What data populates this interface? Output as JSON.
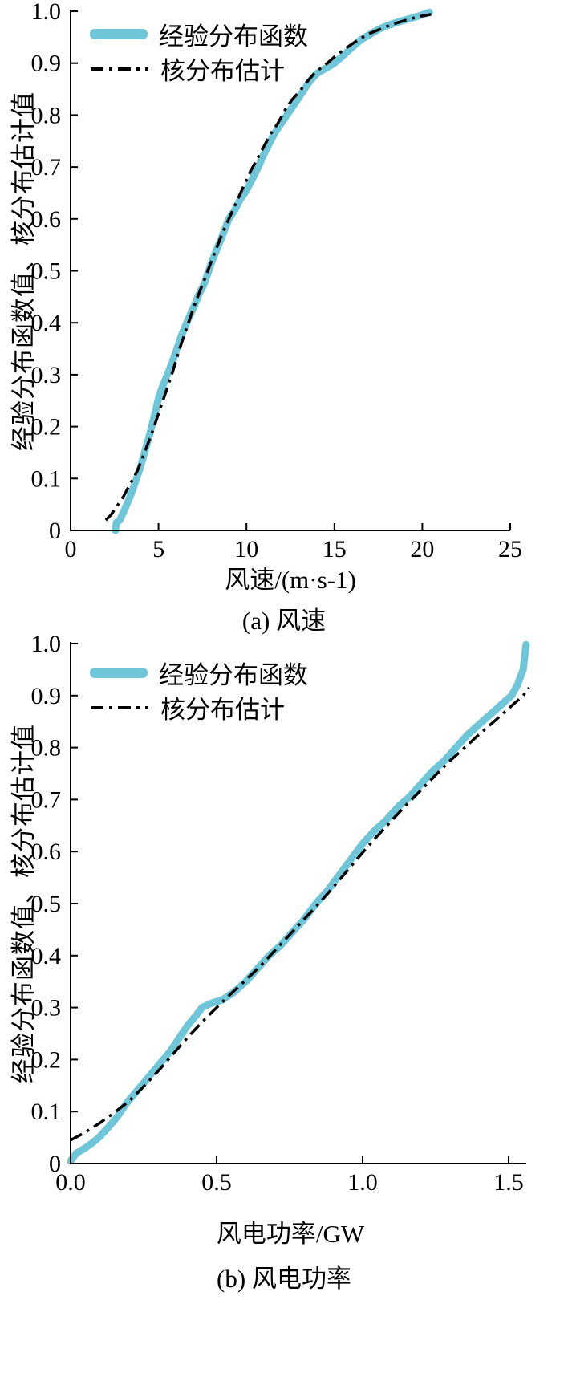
{
  "colors": {
    "empirical": "#6fc6d8",
    "kernel": "#000000",
    "axis": "#000000",
    "background": "#ffffff"
  },
  "chart_data": [
    {
      "id": "wind-speed-cdf",
      "type": "line",
      "caption": "(a) 风速",
      "xlabel": "风速/(m·s-1)",
      "ylabel": "经验分布函数值、核分布估计值",
      "xlim": [
        0,
        25
      ],
      "ylim": [
        0,
        1
      ],
      "grid": false,
      "legend_position": "top-left",
      "xticks": {
        "values": [
          0,
          5,
          10,
          15,
          20,
          25
        ],
        "labels": [
          "0",
          "5",
          "10",
          "15",
          "20",
          "25"
        ]
      },
      "yticks": {
        "values": [
          0,
          0.1,
          0.2,
          0.3,
          0.4,
          0.5,
          0.6,
          0.7,
          0.8,
          0.9,
          1.0
        ],
        "labels": [
          "0",
          "0.1",
          "0.2",
          "0.3",
          "0.4",
          "0.5",
          "0.6",
          "0.7",
          "0.8",
          "0.9",
          "1.0"
        ]
      },
      "series": [
        {
          "name": "经验分布函数",
          "style": "thick-solid",
          "color": "#6fc6d8",
          "points": [
            [
              2.55,
              0.0
            ],
            [
              2.6,
              0.015
            ],
            [
              2.8,
              0.02
            ],
            [
              3.0,
              0.035
            ],
            [
              3.2,
              0.05
            ],
            [
              3.5,
              0.075
            ],
            [
              3.8,
              0.105
            ],
            [
              4.0,
              0.125
            ],
            [
              4.2,
              0.15
            ],
            [
              4.5,
              0.185
            ],
            [
              4.8,
              0.225
            ],
            [
              5.0,
              0.255
            ],
            [
              5.2,
              0.275
            ],
            [
              5.5,
              0.3
            ],
            [
              5.8,
              0.325
            ],
            [
              6.0,
              0.345
            ],
            [
              6.3,
              0.375
            ],
            [
              6.6,
              0.4
            ],
            [
              7.0,
              0.43
            ],
            [
              7.3,
              0.455
            ],
            [
              7.6,
              0.475
            ],
            [
              8.0,
              0.515
            ],
            [
              8.3,
              0.54
            ],
            [
              8.6,
              0.565
            ],
            [
              9.0,
              0.6
            ],
            [
              9.3,
              0.615
            ],
            [
              9.6,
              0.635
            ],
            [
              10.0,
              0.655
            ],
            [
              10.3,
              0.675
            ],
            [
              10.6,
              0.695
            ],
            [
              11.0,
              0.725
            ],
            [
              11.3,
              0.745
            ],
            [
              11.6,
              0.765
            ],
            [
              12.0,
              0.785
            ],
            [
              12.3,
              0.8
            ],
            [
              12.6,
              0.815
            ],
            [
              13.0,
              0.835
            ],
            [
              13.3,
              0.85
            ],
            [
              13.6,
              0.865
            ],
            [
              14.0,
              0.88
            ],
            [
              14.5,
              0.89
            ],
            [
              15.0,
              0.9
            ],
            [
              15.5,
              0.915
            ],
            [
              16.0,
              0.93
            ],
            [
              16.5,
              0.945
            ],
            [
              17.0,
              0.955
            ],
            [
              17.5,
              0.965
            ],
            [
              18.0,
              0.972
            ],
            [
              18.5,
              0.978
            ],
            [
              19.0,
              0.983
            ],
            [
              19.5,
              0.988
            ],
            [
              20.0,
              0.993
            ],
            [
              20.4,
              0.998
            ]
          ]
        },
        {
          "name": "核分布估计",
          "style": "dash-dot",
          "color": "#000000",
          "points": [
            [
              2.0,
              0.02
            ],
            [
              2.3,
              0.03
            ],
            [
              2.6,
              0.045
            ],
            [
              3.0,
              0.065
            ],
            [
              3.4,
              0.09
            ],
            [
              3.8,
              0.115
            ],
            [
              4.2,
              0.15
            ],
            [
              4.6,
              0.185
            ],
            [
              5.0,
              0.225
            ],
            [
              5.4,
              0.265
            ],
            [
              5.8,
              0.305
            ],
            [
              6.2,
              0.35
            ],
            [
              6.6,
              0.39
            ],
            [
              7.0,
              0.43
            ],
            [
              7.4,
              0.465
            ],
            [
              7.8,
              0.5
            ],
            [
              8.2,
              0.535
            ],
            [
              8.6,
              0.57
            ],
            [
              9.0,
              0.6
            ],
            [
              9.4,
              0.63
            ],
            [
              9.8,
              0.66
            ],
            [
              10.2,
              0.69
            ],
            [
              10.6,
              0.715
            ],
            [
              11.0,
              0.74
            ],
            [
              11.4,
              0.765
            ],
            [
              11.8,
              0.785
            ],
            [
              12.2,
              0.81
            ],
            [
              12.6,
              0.83
            ],
            [
              13.0,
              0.845
            ],
            [
              13.4,
              0.862
            ],
            [
              13.8,
              0.878
            ],
            [
              14.2,
              0.89
            ],
            [
              14.6,
              0.9
            ],
            [
              15.0,
              0.912
            ],
            [
              15.5,
              0.925
            ],
            [
              16.0,
              0.937
            ],
            [
              16.5,
              0.948
            ],
            [
              17.0,
              0.957
            ],
            [
              17.5,
              0.964
            ],
            [
              18.0,
              0.971
            ],
            [
              18.5,
              0.977
            ],
            [
              19.0,
              0.982
            ],
            [
              19.5,
              0.987
            ],
            [
              20.0,
              0.991
            ],
            [
              20.5,
              0.994
            ]
          ]
        }
      ]
    },
    {
      "id": "wind-power-cdf",
      "type": "line",
      "caption": "(b) 风电功率",
      "xlabel": "风电功率/GW",
      "ylabel": "经验分布函数值、核分布估计值",
      "xlim": [
        0,
        1.5
      ],
      "ylim": [
        0,
        1
      ],
      "grid": false,
      "legend_position": "top-left",
      "xticks": {
        "values": [
          0,
          0.5,
          1.0,
          1.5
        ],
        "labels": [
          "0.0",
          "0.5",
          "1.0",
          "1.5"
        ]
      },
      "yticks": {
        "values": [
          0,
          0.1,
          0.2,
          0.3,
          0.4,
          0.5,
          0.6,
          0.7,
          0.8,
          0.9,
          1.0
        ],
        "labels": [
          "0",
          "0.1",
          "0.2",
          "0.3",
          "0.4",
          "0.5",
          "0.6",
          "0.7",
          "0.8",
          "0.9",
          "1.0"
        ]
      },
      "series": [
        {
          "name": "经验分布函数",
          "style": "thick-solid",
          "color": "#6fc6d8",
          "points": [
            [
              0.0,
              0.005
            ],
            [
              0.02,
              0.02
            ],
            [
              0.05,
              0.03
            ],
            [
              0.08,
              0.042
            ],
            [
              0.1,
              0.052
            ],
            [
              0.13,
              0.07
            ],
            [
              0.16,
              0.09
            ],
            [
              0.19,
              0.115
            ],
            [
              0.22,
              0.135
            ],
            [
              0.25,
              0.155
            ],
            [
              0.28,
              0.175
            ],
            [
              0.31,
              0.195
            ],
            [
              0.34,
              0.215
            ],
            [
              0.37,
              0.24
            ],
            [
              0.4,
              0.265
            ],
            [
              0.43,
              0.285
            ],
            [
              0.45,
              0.3
            ],
            [
              0.48,
              0.308
            ],
            [
              0.52,
              0.315
            ],
            [
              0.56,
              0.33
            ],
            [
              0.6,
              0.35
            ],
            [
              0.64,
              0.375
            ],
            [
              0.68,
              0.4
            ],
            [
              0.72,
              0.42
            ],
            [
              0.76,
              0.445
            ],
            [
              0.8,
              0.47
            ],
            [
              0.84,
              0.5
            ],
            [
              0.88,
              0.525
            ],
            [
              0.92,
              0.555
            ],
            [
              0.96,
              0.585
            ],
            [
              1.0,
              0.615
            ],
            [
              1.04,
              0.64
            ],
            [
              1.08,
              0.66
            ],
            [
              1.12,
              0.685
            ],
            [
              1.16,
              0.705
            ],
            [
              1.2,
              0.73
            ],
            [
              1.24,
              0.755
            ],
            [
              1.28,
              0.775
            ],
            [
              1.32,
              0.8
            ],
            [
              1.36,
              0.825
            ],
            [
              1.4,
              0.845
            ],
            [
              1.44,
              0.865
            ],
            [
              1.48,
              0.885
            ],
            [
              1.51,
              0.9
            ],
            [
              1.53,
              0.92
            ],
            [
              1.55,
              0.95
            ],
            [
              1.555,
              0.975
            ],
            [
              1.56,
              0.998
            ]
          ]
        },
        {
          "name": "核分布估计",
          "style": "dash-dot",
          "color": "#000000",
          "points": [
            [
              0.0,
              0.045
            ],
            [
              0.05,
              0.06
            ],
            [
              0.1,
              0.078
            ],
            [
              0.15,
              0.098
            ],
            [
              0.2,
              0.12
            ],
            [
              0.25,
              0.148
            ],
            [
              0.3,
              0.178
            ],
            [
              0.35,
              0.21
            ],
            [
              0.4,
              0.242
            ],
            [
              0.45,
              0.272
            ],
            [
              0.5,
              0.3
            ],
            [
              0.55,
              0.327
            ],
            [
              0.6,
              0.353
            ],
            [
              0.65,
              0.38
            ],
            [
              0.7,
              0.41
            ],
            [
              0.75,
              0.44
            ],
            [
              0.8,
              0.47
            ],
            [
              0.85,
              0.5
            ],
            [
              0.9,
              0.532
            ],
            [
              0.95,
              0.565
            ],
            [
              1.0,
              0.598
            ],
            [
              1.05,
              0.63
            ],
            [
              1.1,
              0.66
            ],
            [
              1.15,
              0.69
            ],
            [
              1.2,
              0.718
            ],
            [
              1.25,
              0.747
            ],
            [
              1.3,
              0.775
            ],
            [
              1.35,
              0.8
            ],
            [
              1.4,
              0.826
            ],
            [
              1.45,
              0.85
            ],
            [
              1.5,
              0.875
            ],
            [
              1.55,
              0.9
            ],
            [
              1.57,
              0.915
            ]
          ]
        }
      ]
    }
  ]
}
